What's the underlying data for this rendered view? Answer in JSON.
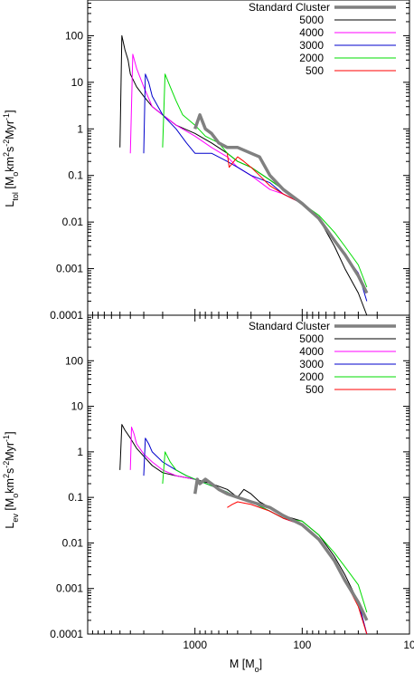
{
  "chart_data": {
    "type": "line",
    "x_axis": {
      "label": "M [M",
      "label_sub": "o",
      "label_end": "]",
      "scale": "log",
      "reversed": true,
      "range": [
        10000,
        10
      ],
      "tick_labels": [
        "1000",
        "100",
        "10"
      ],
      "tick_values": [
        1000,
        100,
        10
      ]
    },
    "y_ticks": {
      "values": [
        100,
        10,
        1,
        0.1,
        0.01,
        0.001,
        0.0001
      ],
      "labels": [
        "100",
        "10",
        "1",
        "0.1",
        "0.01",
        "0.001",
        "0.0001"
      ]
    },
    "legend_labels": [
      "Standard Cluster",
      "5000",
      "4000",
      "3000",
      "2000",
      "500"
    ],
    "series_colors": {
      "Standard Cluster": "#808080",
      "5000": "#000000",
      "4000": "#ff00ff",
      "3000": "#0000cc",
      "2000": "#00dd00",
      "500": "#ff0000"
    },
    "panels": [
      {
        "y_label": {
          "main": "L",
          "sub": "tol",
          "rest": " [M",
          "sub2": "o",
          "rest2": "km",
          "sup": "2",
          "rest3": "s",
          "sup2": "-2",
          "rest4": "Myr",
          "sup3": "-1",
          "end": "]"
        },
        "y_range": [
          0.0001,
          1000
        ],
        "scale": "log",
        "series": [
          {
            "name": "Standard Cluster",
            "x": [
              1000,
              900,
              800,
              700,
              600,
              500,
              400,
              300,
              250,
              200,
              150,
              100,
              70,
              50,
              40,
              30,
              25
            ],
            "y": [
              1.0,
              2.0,
              1.0,
              0.8,
              0.5,
              0.4,
              0.4,
              0.3,
              0.25,
              0.1,
              0.05,
              0.025,
              0.012,
              0.004,
              0.002,
              0.0007,
              0.0003
            ]
          },
          {
            "name": "5000",
            "x": [
              5000,
              4800,
              4500,
              4200,
              4000,
              3500,
              3000,
              2500,
              2000,
              1500,
              1000,
              700,
              500,
              400,
              300,
              200,
              150,
              100,
              70,
              50,
              40,
              30,
              25
            ],
            "y": [
              0.4,
              100,
              50,
              30,
              15,
              8,
              5,
              3,
              2,
              1.2,
              0.8,
              0.5,
              0.3,
              0.2,
              0.15,
              0.08,
              0.05,
              0.025,
              0.012,
              0.003,
              0.001,
              0.0003,
              0.0001
            ]
          },
          {
            "name": "4000",
            "x": [
              4000,
              3800,
              3500,
              3000,
              2500,
              2000,
              1500,
              1000,
              700,
              500,
              400,
              300,
              200,
              150,
              100,
              70,
              50,
              40,
              30,
              25
            ],
            "y": [
              0.3,
              40,
              20,
              8,
              3,
              2,
              1.2,
              0.7,
              0.4,
              0.25,
              0.15,
              0.1,
              0.05,
              0.04,
              0.025,
              0.012,
              0.004,
              0.002,
              0.0008,
              0.0003
            ]
          },
          {
            "name": "3000",
            "x": [
              3000,
              2900,
              2700,
              2500,
              2000,
              1500,
              1200,
              1000,
              700,
              500,
              400,
              300,
              200,
              150,
              100,
              70,
              50,
              40,
              30,
              25
            ],
            "y": [
              0.3,
              15,
              10,
              5,
              2,
              1,
              0.5,
              0.3,
              0.3,
              0.2,
              0.15,
              0.1,
              0.07,
              0.04,
              0.025,
              0.012,
              0.004,
              0.002,
              0.0008,
              0.0002
            ]
          },
          {
            "name": "2000",
            "x": [
              2000,
              1900,
              1700,
              1500,
              1300,
              1000,
              800,
              600,
              500,
              400,
              300,
              200,
              150,
              100,
              70,
              50,
              40,
              30,
              25
            ],
            "y": [
              0.4,
              15,
              8,
              4,
              2,
              1.2,
              0.7,
              0.5,
              0.3,
              0.2,
              0.15,
              0.08,
              0.05,
              0.025,
              0.014,
              0.006,
              0.003,
              0.0012,
              0.0004
            ]
          },
          {
            "name": "500",
            "x": [
              500,
              480,
              450,
              400,
              350,
              300,
              250,
              200,
              150,
              100,
              70,
              50,
              40,
              30,
              25
            ],
            "y": [
              0.3,
              0.15,
              0.18,
              0.25,
              0.2,
              0.15,
              0.1,
              0.06,
              0.04,
              0.025,
              0.012,
              0.004,
              0.002,
              0.0007,
              0.0003
            ]
          }
        ]
      },
      {
        "y_label": {
          "main": "L",
          "sub": "ev",
          "rest": " [M",
          "sub2": "o",
          "rest2": "km",
          "sup": "2",
          "rest3": "s",
          "sup2": "-2",
          "rest4": "Myr",
          "sup3": "-1",
          "end": "]"
        },
        "y_range": [
          0.0001,
          1000
        ],
        "scale": "log",
        "series": [
          {
            "name": "Standard Cluster",
            "x": [
              1000,
              950,
              900,
              800,
              700,
              600,
              500,
              400,
              300,
              200,
              150,
              100,
              70,
              50,
              40,
              30,
              25
            ],
            "y": [
              0.12,
              0.25,
              0.2,
              0.25,
              0.2,
              0.15,
              0.12,
              0.1,
              0.08,
              0.06,
              0.04,
              0.025,
              0.012,
              0.004,
              0.0015,
              0.0005,
              0.0002
            ]
          },
          {
            "name": "5000",
            "x": [
              5000,
              4800,
              4500,
              4000,
              3500,
              3000,
              2500,
              2000,
              1500,
              1000,
              700,
              500,
              400,
              350,
              300,
              250,
              200,
              150,
              100,
              70,
              50,
              40,
              30,
              25
            ],
            "y": [
              0.4,
              4,
              3,
              2,
              1.2,
              0.8,
              0.5,
              0.35,
              0.3,
              0.25,
              0.2,
              0.15,
              0.1,
              0.15,
              0.12,
              0.08,
              0.06,
              0.04,
              0.03,
              0.015,
              0.005,
              0.002,
              0.0005,
              0.0001
            ]
          },
          {
            "name": "4000",
            "x": [
              4000,
              3900,
              3700,
              3500,
              3000,
              2500,
              2000,
              1500,
              1000,
              700,
              500,
              400,
              300,
              200,
              150,
              100,
              70,
              50,
              40,
              30,
              25
            ],
            "y": [
              0.4,
              3.5,
              2.5,
              1.5,
              0.9,
              0.6,
              0.4,
              0.3,
              0.25,
              0.18,
              0.13,
              0.1,
              0.08,
              0.05,
              0.035,
              0.025,
              0.012,
              0.004,
              0.0015,
              0.0005,
              0.0001
            ]
          },
          {
            "name": "3000",
            "x": [
              3000,
              2900,
              2700,
              2500,
              2000,
              1500,
              1200,
              1000,
              700,
              500,
              400,
              300,
              200,
              150,
              100,
              70,
              50,
              40,
              30,
              25
            ],
            "y": [
              0.3,
              2,
              1.5,
              1,
              0.6,
              0.4,
              0.3,
              0.25,
              0.18,
              0.13,
              0.1,
              0.08,
              0.05,
              0.035,
              0.025,
              0.012,
              0.004,
              0.0015,
              0.0005,
              0.0001
            ]
          },
          {
            "name": "2000",
            "x": [
              2000,
              1900,
              1700,
              1500,
              1200,
              1000,
              700,
              500,
              400,
              300,
              200,
              150,
              100,
              70,
              50,
              40,
              30,
              25
            ],
            "y": [
              0.2,
              1,
              0.6,
              0.4,
              0.3,
              0.25,
              0.18,
              0.13,
              0.1,
              0.08,
              0.05,
              0.035,
              0.03,
              0.015,
              0.006,
              0.003,
              0.0012,
              0.0003
            ]
          },
          {
            "name": "500",
            "x": [
              500,
              450,
              400,
              300,
              200,
              150,
              100,
              70,
              50,
              40,
              30,
              25
            ],
            "y": [
              0.06,
              0.07,
              0.08,
              0.07,
              0.05,
              0.035,
              0.025,
              0.012,
              0.004,
              0.0015,
              0.0004,
              0.0001
            ]
          }
        ]
      }
    ]
  }
}
